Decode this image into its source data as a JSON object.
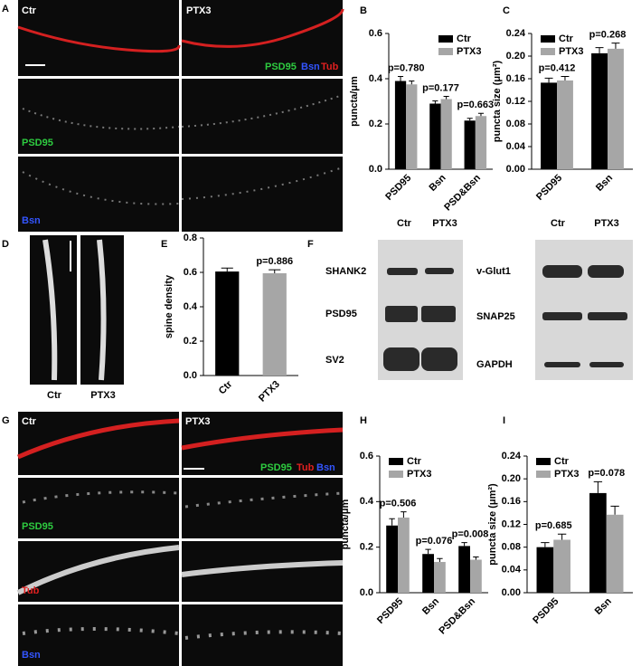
{
  "chart_data": [
    {
      "type": "bar",
      "panel": "B",
      "ylabel": "puncta/μm",
      "categories": [
        "PSD95",
        "Bsn",
        "PSD&Bsn"
      ],
      "series": [
        {
          "name": "Ctr",
          "color": "#000000",
          "values": [
            0.39,
            0.29,
            0.215
          ],
          "errors": [
            0.02,
            0.012,
            0.01
          ]
        },
        {
          "name": "PTX3",
          "color": "#a6a6a6",
          "values": [
            0.375,
            0.31,
            0.235
          ],
          "errors": [
            0.015,
            0.012,
            0.012
          ]
        }
      ],
      "annotations": [
        "p=0.780",
        "p=0.177",
        "p=0.663"
      ],
      "ylim": [
        0,
        0.6
      ],
      "yticks": [
        {
          "value": 0,
          "label": "0.0"
        },
        0.2,
        0.4,
        0.6
      ],
      "legend": "upper right"
    },
    {
      "type": "bar",
      "panel": "C",
      "ylabel": "puncta size (μm²)",
      "categories": [
        "PSD95",
        "Bsn"
      ],
      "series": [
        {
          "name": "Ctr",
          "color": "#000000",
          "values": [
            0.153,
            0.205
          ],
          "errors": [
            0.008,
            0.01
          ]
        },
        {
          "name": "PTX3",
          "color": "#a6a6a6",
          "values": [
            0.157,
            0.213
          ],
          "errors": [
            0.007,
            0.01
          ]
        }
      ],
      "annotations": [
        "p=0.412",
        "p=0.268"
      ],
      "ylim": [
        0,
        0.24
      ],
      "yticks": [
        {
          "value": 0,
          "label": "0.00"
        },
        {
          "value": 0.04,
          "label": "0.04"
        },
        {
          "value": 0.08,
          "label": "0.08"
        },
        {
          "value": 0.12,
          "label": "0.12"
        },
        {
          "value": 0.16,
          "label": "0.16"
        },
        {
          "value": 0.2,
          "label": "0.20"
        },
        {
          "value": 0.24,
          "label": "0.24"
        }
      ],
      "legend": "upper left"
    },
    {
      "type": "bar",
      "panel": "E",
      "ylabel": "spine density",
      "categories": [
        "Ctr",
        "PTX3"
      ],
      "values": [
        0.605,
        0.595
      ],
      "errors": [
        0.02,
        0.02
      ],
      "colors": [
        "#000000",
        "#a6a6a6"
      ],
      "annotations": [
        null,
        "p=0.886"
      ],
      "ylim": [
        0,
        0.8
      ],
      "yticks": [
        {
          "value": 0,
          "label": "0.0"
        },
        0.2,
        0.4,
        0.6,
        0.8
      ]
    },
    {
      "type": "bar",
      "panel": "H",
      "ylabel": "puncta/μm",
      "categories": [
        "PSD95",
        "Bsn",
        "PSD&Bsn"
      ],
      "series": [
        {
          "name": "Ctr",
          "color": "#000000",
          "values": [
            0.295,
            0.17,
            0.205
          ],
          "errors": [
            0.03,
            0.02,
            0.015
          ]
        },
        {
          "name": "PTX3",
          "color": "#a6a6a6",
          "values": [
            0.33,
            0.135,
            0.145
          ],
          "errors": [
            0.025,
            0.015,
            0.012
          ]
        }
      ],
      "annotations": [
        "p=0.506",
        "p=0.076",
        "p=0.008"
      ],
      "ylim": [
        0,
        0.6
      ],
      "yticks": [
        {
          "value": 0,
          "label": "0.0"
        },
        0.2,
        0.4,
        0.6
      ],
      "legend": "upper left"
    },
    {
      "type": "bar",
      "panel": "I",
      "ylabel": "puncta size (μm²)",
      "categories": [
        "PSD95",
        "Bsn"
      ],
      "series": [
        {
          "name": "Ctr",
          "color": "#000000",
          "values": [
            0.08,
            0.175
          ],
          "errors": [
            0.008,
            0.02
          ]
        },
        {
          "name": "PTX3",
          "color": "#a6a6a6",
          "values": [
            0.093,
            0.137
          ],
          "errors": [
            0.01,
            0.015
          ]
        }
      ],
      "annotations": [
        "p=0.685",
        "p=0.078"
      ],
      "ylim": [
        0,
        0.24
      ],
      "yticks": [
        {
          "value": 0,
          "label": "0.00"
        },
        {
          "value": 0.04,
          "label": "0.04"
        },
        {
          "value": 0.08,
          "label": "0.08"
        },
        {
          "value": 0.12,
          "label": "0.12"
        },
        {
          "value": 0.16,
          "label": "0.16"
        },
        {
          "value": 0.2,
          "label": "0.20"
        },
        {
          "value": 0.24,
          "label": "0.24"
        }
      ],
      "legend": "upper left"
    }
  ],
  "image_panels": {
    "A": {
      "label": "A",
      "columns": [
        "Ctr",
        "PTX3"
      ],
      "merge": [
        "PSD95",
        "Bsn",
        "Tub"
      ],
      "rows": [
        "PSD95",
        "Bsn"
      ]
    },
    "D": {
      "label": "D",
      "columns": [
        "Ctr",
        "PTX3"
      ]
    },
    "F": {
      "label": "F",
      "columns": [
        "Ctr",
        "PTX3"
      ],
      "left_bands": [
        "SHANK2",
        "PSD95",
        "SV2"
      ],
      "right_bands": [
        "v-Glut1",
        "SNAP25",
        "GAPDH"
      ]
    },
    "G": {
      "label": "G",
      "columns": [
        "Ctr",
        "PTX3"
      ],
      "merge": [
        "PSD95",
        "Tub",
        "Bsn"
      ],
      "rows": [
        "PSD95",
        "Tub",
        "Bsn"
      ]
    }
  }
}
